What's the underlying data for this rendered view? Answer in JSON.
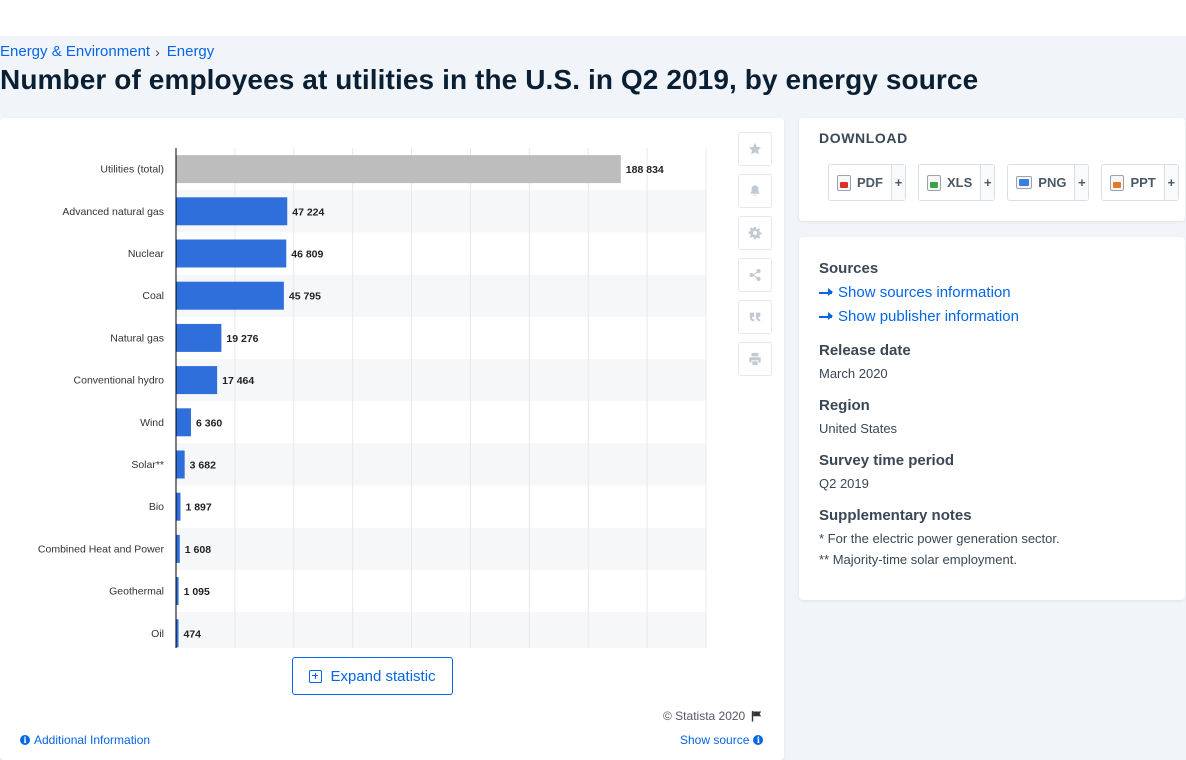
{
  "breadcrumb": {
    "items": [
      "Energy & Environment",
      "Energy"
    ],
    "separator": "›"
  },
  "title": "Number of employees at utilities in the U.S. in Q2 2019, by energy source",
  "toolbar": {
    "icons": [
      "star-icon",
      "bell-icon",
      "gear-icon",
      "share-icon",
      "quote-icon",
      "print-icon"
    ]
  },
  "chart_data": {
    "type": "bar",
    "orientation": "horizontal",
    "title": "",
    "xlabel": "",
    "ylabel": "",
    "categories": [
      "Utilities (total)",
      "Advanced natural gas",
      "Nuclear",
      "Coal",
      "Natural gas",
      "Conventional hydro",
      "Wind",
      "Solar**",
      "Bio",
      "Combined Heat and Power",
      "Geothermal",
      "Oil"
    ],
    "values": [
      188834,
      47224,
      46809,
      45795,
      19276,
      17464,
      6360,
      3682,
      1897,
      1608,
      1095,
      474
    ],
    "value_labels": [
      "188 834",
      "47 224",
      "46 809",
      "45 795",
      "19 276",
      "17 464",
      "6 360",
      "3 682",
      "1 897",
      "1 608",
      "1 095",
      "474"
    ],
    "xlim": [
      0,
      225000
    ],
    "grid": true,
    "legend": "none",
    "colors": {
      "total": "#bdbdbd",
      "bar": "#2f6fdb",
      "axis": "#000000",
      "grid": "#e8e8e8",
      "stripe": "#f6f7f9"
    }
  },
  "expand_label": "Expand statistic",
  "copyright": "© Statista 2020",
  "additional_info": "Additional Information",
  "show_source": "Show source",
  "download": {
    "title": "DOWNLOAD",
    "buttons": [
      {
        "label": "PDF",
        "icon": "pdf-file-icon"
      },
      {
        "label": "XLS",
        "icon": "xls-file-icon"
      },
      {
        "label": "PNG",
        "icon": "png-file-icon"
      },
      {
        "label": "PPT",
        "icon": "ppt-file-icon"
      }
    ],
    "plus": "+"
  },
  "meta": {
    "sources_heading": "Sources",
    "show_sources": "Show sources information",
    "show_publisher": "Show publisher information",
    "release_heading": "Release date",
    "release_value": "March 2020",
    "region_heading": "Region",
    "region_value": "United States",
    "period_heading": "Survey time period",
    "period_value": "Q2 2019",
    "notes_heading": "Supplementary notes",
    "note_1": "* For the electric power generation sector.",
    "note_2": "** Majority-time solar employment."
  }
}
